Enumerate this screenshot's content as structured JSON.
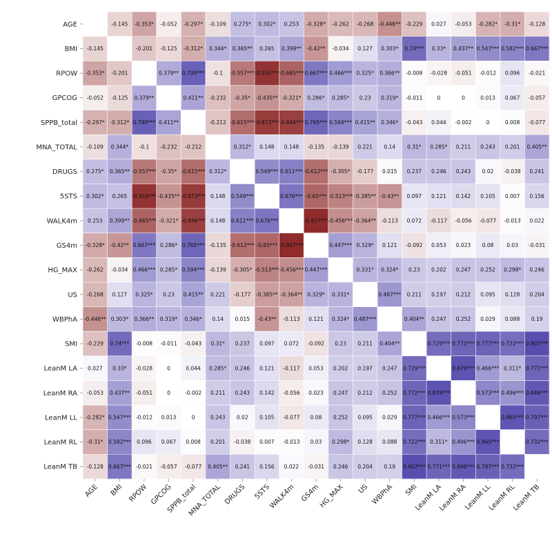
{
  "colors": {
    "negative": "#8b2323",
    "positive": "#4a3fa8",
    "neutral": "#ffffff"
  },
  "chart_data": {
    "type": "heatmap",
    "title": "",
    "variables": [
      "AGE",
      "BMI",
      "RPOW",
      "GPCOG",
      "SPPB_total",
      "MNA_TOTAL",
      "DRUGS",
      "5STS",
      "WALK4m",
      "GS4m",
      "HG_MAX",
      "US",
      "WBPhA",
      "SMI",
      "LeanM LA",
      "LeanM RA",
      "LeanM LL",
      "LeanM RL",
      "LeanM TB"
    ],
    "value_range": [
      -1,
      1
    ],
    "cells": [
      [
        "",
        "-0.145",
        "-0.353*",
        "-0.052",
        "-0.297*",
        "-0.109",
        "0.275*",
        "0.302*",
        "0.253",
        "-0.328*",
        "-0.262",
        "-0.268",
        "-0.446**",
        "-0.229",
        "0.027",
        "-0.053",
        "-0.282*",
        "-0.31*",
        "-0.128"
      ],
      [
        "-0.145",
        "",
        "-0.201",
        "-0.125",
        "-0.312*",
        "0.344*",
        "0.365**",
        "0.265",
        "0.399**",
        "-0.42**",
        "-0.034",
        "0.127",
        "0.303*",
        "0.74***",
        "0.33*",
        "0.437**",
        "0.547***",
        "0.582***",
        "0.667***"
      ],
      [
        "-0.353*",
        "-0.201",
        "",
        "0.379**",
        "0.799***",
        "-0.1",
        "-0.557***",
        "-0.916***",
        "-0.665***",
        "0.667***",
        "0.466***",
        "0.325*",
        "0.366**",
        "-0.008",
        "-0.028",
        "-0.051",
        "-0.012",
        "0.096",
        "-0.021"
      ],
      [
        "-0.052",
        "-0.125",
        "0.379**",
        "",
        "0.411**",
        "-0.232",
        "-0.35*",
        "-0.435**",
        "-0.321*",
        "0.286*",
        "0.285*",
        "0.23",
        "0.319*",
        "-0.011",
        "0",
        "0",
        "0.013",
        "0.067",
        "-0.057"
      ],
      [
        "-0.297*",
        "-0.312*",
        "0.799***",
        "0.411**",
        "",
        "-0.212",
        "-0.615***",
        "-0.873***",
        "-0.846***",
        "0.765***",
        "0.594***",
        "0.415**",
        "0.346*",
        "-0.043",
        "0.044",
        "-0.002",
        "0",
        "0.008",
        "-0.077"
      ],
      [
        "-0.109",
        "0.344*",
        "-0.1",
        "-0.232",
        "-0.212",
        "",
        "0.312*",
        "0.148",
        "0.148",
        "-0.135",
        "-0.139",
        "0.221",
        "0.14",
        "0.31*",
        "0.285*",
        "0.211",
        "0.243",
        "0.201",
        "0.405**"
      ],
      [
        "0.275*",
        "0.365**",
        "-0.557***",
        "-0.35*",
        "-0.615***",
        "0.312*",
        "",
        "0.549***",
        "0.611***",
        "-0.612***",
        "-0.305*",
        "-0.177",
        "0.015",
        "0.237",
        "0.246",
        "0.243",
        "0.02",
        "-0.038",
        "0.241"
      ],
      [
        "0.302*",
        "0.265",
        "-0.916***",
        "-0.435**",
        "-0.873***",
        "0.148",
        "0.549***",
        "",
        "0.676***",
        "-0.65***",
        "-0.513***",
        "-0.385**",
        "-0.43**",
        "0.097",
        "0.121",
        "0.142",
        "0.105",
        "0.007",
        "0.156"
      ],
      [
        "0.253",
        "0.399**",
        "-0.665***",
        "-0.321*",
        "-0.846***",
        "0.148",
        "0.611***",
        "0.676***",
        "",
        "-0.957***",
        "-0.456***",
        "-0.364**",
        "-0.113",
        "0.072",
        "-0.117",
        "-0.056",
        "-0.077",
        "-0.013",
        "0.022"
      ],
      [
        "-0.328*",
        "-0.42**",
        "0.667***",
        "0.286*",
        "0.765***",
        "-0.135",
        "-0.612***",
        "-0.65***",
        "-0.957***",
        "",
        "0.447***",
        "0.329*",
        "0.121",
        "-0.092",
        "0.053",
        "0.023",
        "0.08",
        "0.03",
        "-0.031"
      ],
      [
        "-0.262",
        "-0.034",
        "0.466***",
        "0.285*",
        "0.594***",
        "-0.139",
        "-0.305*",
        "-0.513***",
        "-0.456***",
        "0.447***",
        "",
        "0.331*",
        "0.324*",
        "0.23",
        "0.202",
        "0.247",
        "0.252",
        "0.298*",
        "0.246"
      ],
      [
        "-0.268",
        "0.127",
        "0.325*",
        "0.23",
        "0.415**",
        "0.221",
        "-0.177",
        "-0.385**",
        "-0.364**",
        "0.329*",
        "0.331*",
        "",
        "0.487***",
        "0.211",
        "0.197",
        "0.212",
        "0.095",
        "0.128",
        "0.204"
      ],
      [
        "-0.446**",
        "0.303*",
        "0.366**",
        "0.319*",
        "0.346*",
        "0.14",
        "0.015",
        "-0.43**",
        "-0.113",
        "0.121",
        "0.324*",
        "0.487***",
        "",
        "0.404**",
        "0.247",
        "0.252",
        "0.029",
        "0.088",
        "0.19"
      ],
      [
        "-0.229",
        "0.74***",
        "-0.008",
        "-0.011",
        "-0.043",
        "0.31*",
        "0.237",
        "0.097",
        "0.072",
        "-0.092",
        "0.23",
        "0.211",
        "0.404**",
        "",
        "0.729***",
        "0.772***",
        "0.777***",
        "0.722***",
        "0.907***"
      ],
      [
        "0.027",
        "0.33*",
        "-0.028",
        "0",
        "0.044",
        "0.285*",
        "0.246",
        "0.121",
        "-0.117",
        "0.053",
        "0.202",
        "0.197",
        "0.247",
        "0.729***",
        "",
        "0.879***",
        "0.466***",
        "0.311*",
        "0.771***"
      ],
      [
        "-0.053",
        "0.437**",
        "-0.051",
        "0",
        "-0.002",
        "0.211",
        "0.243",
        "0.142",
        "-0.056",
        "0.023",
        "0.247",
        "0.212",
        "0.252",
        "0.772***",
        "0.879***",
        "",
        "0.573***",
        "0.496***",
        "0.846***"
      ],
      [
        "-0.282*",
        "0.547***",
        "-0.012",
        "0.013",
        "0",
        "0.243",
        "0.02",
        "0.105",
        "-0.077",
        "0.08",
        "0.252",
        "0.095",
        "0.029",
        "0.777***",
        "0.466***",
        "0.573***",
        "",
        "0.865***",
        "0.797***"
      ],
      [
        "-0.31*",
        "0.582***",
        "0.096",
        "0.067",
        "0.008",
        "0.201",
        "-0.038",
        "0.007",
        "-0.013",
        "0.03",
        "0.298*",
        "0.128",
        "0.088",
        "0.722***",
        "0.311*",
        "0.496***",
        "0.865***",
        "",
        "0.732***"
      ],
      [
        "-0.128",
        "0.667***",
        "-0.021",
        "-0.057",
        "-0.077",
        "0.405**",
        "0.241",
        "0.156",
        "0.022",
        "-0.031",
        "0.246",
        "0.204",
        "0.19",
        "0.907***",
        "0.771***",
        "0.846***",
        "0.797***",
        "0.732***",
        ""
      ]
    ]
  }
}
